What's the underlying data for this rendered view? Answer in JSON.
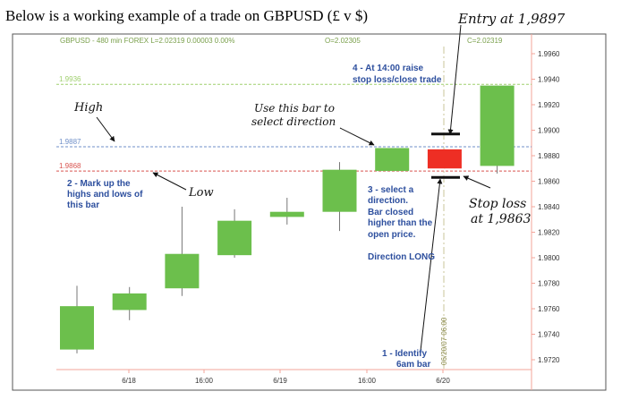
{
  "page": {
    "title": "Below is a working example of a trade on GBPUSD (£ v $)"
  },
  "chart_header": {
    "left": "GBPUSD - 480 min  FOREX  L=2.02319  0.00003  0.00%",
    "open": "O=2.02305",
    "close": "C=2.02319"
  },
  "chart_data": {
    "type": "candlestick",
    "y_ticks": [
      "1.9960",
      "1.9940",
      "1.9920",
      "1.9900",
      "1.9880",
      "1.9860",
      "1.9840",
      "1.9820",
      "1.9800",
      "1.9780",
      "1.9760",
      "1.9740",
      "1.9720"
    ],
    "ylim": [
      1.9708,
      1.9972
    ],
    "x_tick_labels": [
      "6/18",
      "16:00",
      "6/19",
      "16:00",
      "6/20"
    ],
    "candles": [
      {
        "open": 1.9728,
        "close": 1.9762,
        "high": 1.9778,
        "low": 1.9725
      },
      {
        "open": 1.9759,
        "close": 1.9772,
        "high": 1.9777,
        "low": 1.9751
      },
      {
        "open": 1.9776,
        "close": 1.9803,
        "high": 1.984,
        "low": 1.977
      },
      {
        "open": 1.9802,
        "close": 1.9829,
        "high": 1.9838,
        "low": 1.98
      },
      {
        "open": 1.9832,
        "close": 1.9836,
        "high": 1.9847,
        "low": 1.9826
      },
      {
        "open": 1.9836,
        "close": 1.9869,
        "high": 1.9875,
        "low": 1.9821
      },
      {
        "open": 1.9868,
        "close": 1.9886,
        "high": 1.9886,
        "low": 1.9868
      },
      {
        "open": 1.9885,
        "close": 1.987,
        "high": 1.9885,
        "low": 1.987
      },
      {
        "open": 1.9872,
        "close": 1.9935,
        "high": 1.9935,
        "low": 1.9866
      }
    ],
    "levels": [
      {
        "label": "1.9936",
        "value": 1.9936,
        "color": "#9fcf6e"
      },
      {
        "label": "1.9887",
        "value": 1.9887,
        "color": "#6f8fc8"
      },
      {
        "label": "1.9868",
        "value": 1.9868,
        "color": "#d9534f"
      }
    ],
    "entry_level": 1.9897,
    "stop_level": 1.9863,
    "colors": {
      "up": "#6cbf4c",
      "current": "#ee2e24",
      "tick_text": "#333333",
      "axis": "#f3a49a"
    }
  },
  "annotations": {
    "entry": "Entry at 1,9897",
    "high": "High",
    "use_bar": [
      "Use this bar to",
      "select direction"
    ],
    "low": "Low",
    "stop_loss": [
      "Stop loss",
      "at 1,9863"
    ],
    "step4": [
      "4 - At 14:00  raise",
      "stop loss/close trade"
    ],
    "step2": [
      "2 - Mark up the",
      "highs and lows of",
      "this bar"
    ],
    "step3": [
      "3 - select a",
      "direction.",
      "Bar closed",
      "higher than the",
      "open price.",
      "",
      "Direction LONG"
    ],
    "step1": [
      "1 -  Identify",
      "6am bar"
    ],
    "vertical_date": "06/20/07 06:00"
  }
}
